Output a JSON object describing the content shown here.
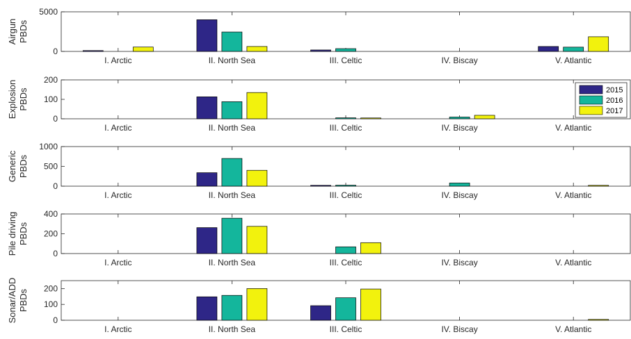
{
  "chart_data": [
    {
      "type": "bar",
      "ylabel": [
        "Airgun",
        "PBDs"
      ],
      "ylim": [
        0,
        5000
      ],
      "yticks": [
        "0",
        "5000"
      ],
      "categories": [
        "I. Arctic",
        "II. North Sea",
        "III. Celtic",
        "IV. Biscay",
        "V. Atlantic"
      ],
      "series": [
        {
          "name": "2015",
          "values": [
            30,
            4000,
            180,
            0,
            620
          ]
        },
        {
          "name": "2016",
          "values": [
            0,
            2450,
            350,
            0,
            540
          ]
        },
        {
          "name": "2017",
          "values": [
            550,
            620,
            0,
            0,
            1850
          ]
        }
      ]
    },
    {
      "type": "bar",
      "ylabel": [
        "Explosion",
        "PBDs"
      ],
      "ylim": [
        0,
        200
      ],
      "yticks": [
        "0",
        "100",
        "200"
      ],
      "categories": [
        "I. Arctic",
        "II. North Sea",
        "III. Celtic",
        "IV. Biscay",
        "V. Atlantic"
      ],
      "series": [
        {
          "name": "2015",
          "values": [
            0,
            113,
            0,
            0,
            0
          ]
        },
        {
          "name": "2016",
          "values": [
            0,
            88,
            5,
            9,
            0
          ]
        },
        {
          "name": "2017",
          "values": [
            0,
            135,
            3,
            18,
            0
          ]
        }
      ],
      "legend": {
        "position": "top-right",
        "entries": [
          "2015",
          "2016",
          "2017"
        ]
      }
    },
    {
      "type": "bar",
      "ylabel": [
        "Generic",
        "PBDs"
      ],
      "ylim": [
        0,
        1000
      ],
      "yticks": [
        "0",
        "500",
        "1000"
      ],
      "categories": [
        "I. Arctic",
        "II. North Sea",
        "III. Celtic",
        "IV. Biscay",
        "V. Atlantic"
      ],
      "series": [
        {
          "name": "2015",
          "values": [
            0,
            340,
            10,
            0,
            0
          ]
        },
        {
          "name": "2016",
          "values": [
            0,
            700,
            25,
            80,
            0
          ]
        },
        {
          "name": "2017",
          "values": [
            0,
            400,
            0,
            0,
            15
          ]
        }
      ]
    },
    {
      "type": "bar",
      "ylabel": [
        "Pile driving",
        "PBDs"
      ],
      "ylim": [
        0,
        400
      ],
      "yticks": [
        "0",
        "200",
        "400"
      ],
      "categories": [
        "I. Arctic",
        "II. North Sea",
        "III. Celtic",
        "IV. Biscay",
        "V. Atlantic"
      ],
      "series": [
        {
          "name": "2015",
          "values": [
            0,
            262,
            0,
            0,
            0
          ]
        },
        {
          "name": "2016",
          "values": [
            0,
            357,
            68,
            0,
            0
          ]
        },
        {
          "name": "2017",
          "values": [
            0,
            275,
            110,
            0,
            0
          ]
        }
      ]
    },
    {
      "type": "bar",
      "ylabel": [
        "Sonar/ADD",
        "PBDs"
      ],
      "ylim": [
        0,
        250
      ],
      "yticks": [
        "0",
        "100",
        "200"
      ],
      "categories": [
        "I. Arctic",
        "II. North Sea",
        "III. Celtic",
        "IV. Biscay",
        "V. Atlantic"
      ],
      "series": [
        {
          "name": "2015",
          "values": [
            0,
            148,
            92,
            0,
            0
          ]
        },
        {
          "name": "2016",
          "values": [
            0,
            157,
            142,
            0,
            0
          ]
        },
        {
          "name": "2017",
          "values": [
            0,
            200,
            197,
            0,
            5
          ]
        }
      ]
    }
  ],
  "colors": {
    "2015": "#2e2687",
    "2016": "#14b69c",
    "2017": "#f2f20d",
    "axis": "#262626",
    "tick": "#4d4d4d"
  }
}
